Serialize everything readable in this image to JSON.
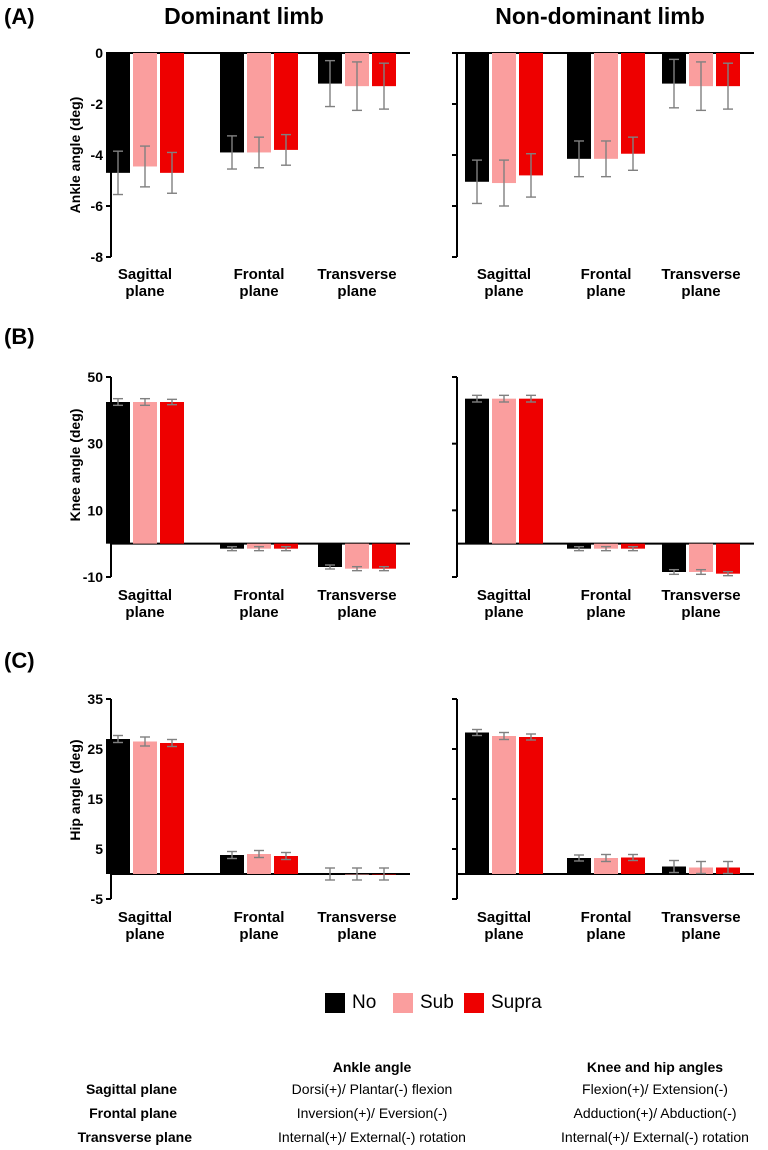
{
  "headers": {
    "dominant": "Dominant limb",
    "nondominant": "Non-dominant limb"
  },
  "legend": [
    {
      "label": "No",
      "color": "#000000"
    },
    {
      "label": "Sub",
      "color": "#fa9e9e"
    },
    {
      "label": "Supra",
      "color": "#ee0000"
    }
  ],
  "colors": {
    "errorbar": "#808080",
    "axis": "#000000"
  },
  "chart_data": [
    {
      "type": "bar",
      "panel": "(A)",
      "limb": "Dominant limb",
      "ylabel": "Ankle angle (deg)",
      "ylim": [
        -8,
        0
      ],
      "yticks": [
        0,
        -2,
        -4,
        -6,
        -8
      ],
      "categories": [
        "Sagittal plane",
        "Frontal plane",
        "Transverse plane"
      ],
      "series": [
        {
          "name": "No",
          "values": [
            -4.7,
            -3.9,
            -1.2
          ],
          "errors": [
            0.85,
            0.65,
            0.9
          ]
        },
        {
          "name": "Sub",
          "values": [
            -4.45,
            -3.9,
            -1.3
          ],
          "errors": [
            0.8,
            0.6,
            0.95
          ]
        },
        {
          "name": "Supra",
          "values": [
            -4.7,
            -3.8,
            -1.3
          ],
          "errors": [
            0.8,
            0.6,
            0.9
          ]
        }
      ]
    },
    {
      "type": "bar",
      "panel": "(A)",
      "limb": "Non-dominant limb",
      "ylabel": "Ankle angle (deg)",
      "ylim": [
        -8,
        0
      ],
      "yticks": [
        0,
        -2,
        -4,
        -6,
        -8
      ],
      "categories": [
        "Sagittal plane",
        "Frontal plane",
        "Transverse plane"
      ],
      "series": [
        {
          "name": "No",
          "values": [
            -5.05,
            -4.15,
            -1.2
          ],
          "errors": [
            0.85,
            0.7,
            0.95
          ]
        },
        {
          "name": "Sub",
          "values": [
            -5.1,
            -4.15,
            -1.3
          ],
          "errors": [
            0.9,
            0.7,
            0.95
          ]
        },
        {
          "name": "Supra",
          "values": [
            -4.8,
            -3.95,
            -1.3
          ],
          "errors": [
            0.85,
            0.65,
            0.9
          ]
        }
      ]
    },
    {
      "type": "bar",
      "panel": "(B)",
      "limb": "Dominant limb",
      "ylabel": "Knee angle (deg)",
      "ylim": [
        -10,
        50
      ],
      "yticks": [
        50,
        30,
        10,
        -10
      ],
      "categories": [
        "Sagittal plane",
        "Frontal plane",
        "Transverse plane"
      ],
      "series": [
        {
          "name": "No",
          "values": [
            42.5,
            -1.5,
            -7
          ],
          "errors": [
            1.0,
            0.6,
            0.6
          ]
        },
        {
          "name": "Sub",
          "values": [
            42.5,
            -1.5,
            -7.5
          ],
          "errors": [
            1.0,
            0.6,
            0.6
          ]
        },
        {
          "name": "Supra",
          "values": [
            42.5,
            -1.5,
            -7.5
          ],
          "errors": [
            0.8,
            0.6,
            0.6
          ]
        }
      ]
    },
    {
      "type": "bar",
      "panel": "(B)",
      "limb": "Non-dominant limb",
      "ylabel": "Knee angle (deg)",
      "ylim": [
        -10,
        50
      ],
      "yticks": [
        50,
        30,
        10,
        -10
      ],
      "categories": [
        "Sagittal plane",
        "Frontal plane",
        "Transverse plane"
      ],
      "series": [
        {
          "name": "No",
          "values": [
            43.5,
            -1.5,
            -8.5
          ],
          "errors": [
            1.0,
            0.6,
            0.7
          ]
        },
        {
          "name": "Sub",
          "values": [
            43.5,
            -1.5,
            -8.5
          ],
          "errors": [
            1.0,
            0.6,
            0.7
          ]
        },
        {
          "name": "Supra",
          "values": [
            43.5,
            -1.5,
            -9
          ],
          "errors": [
            1.0,
            0.6,
            0.6
          ]
        }
      ]
    },
    {
      "type": "bar",
      "panel": "(C)",
      "limb": "Dominant limb",
      "ylabel": "Hip angle (deg)",
      "ylim": [
        -5,
        35
      ],
      "yticks": [
        35,
        25,
        15,
        5,
        -5
      ],
      "categories": [
        "Sagittal plane",
        "Frontal plane",
        "Transverse plane"
      ],
      "series": [
        {
          "name": "No",
          "values": [
            27,
            3.8,
            0
          ],
          "errors": [
            0.7,
            0.7,
            1.2
          ]
        },
        {
          "name": "Sub",
          "values": [
            26.5,
            4.0,
            0
          ],
          "errors": [
            0.9,
            0.7,
            1.2
          ]
        },
        {
          "name": "Supra",
          "values": [
            26.2,
            3.6,
            0
          ],
          "errors": [
            0.7,
            0.7,
            1.2
          ]
        }
      ]
    },
    {
      "type": "bar",
      "panel": "(C)",
      "limb": "Non-dominant limb",
      "ylabel": "Hip angle (deg)",
      "ylim": [
        -5,
        35
      ],
      "yticks": [
        35,
        25,
        15,
        5,
        -5
      ],
      "categories": [
        "Sagittal plane",
        "Frontal plane",
        "Transverse plane"
      ],
      "series": [
        {
          "name": "No",
          "values": [
            28.3,
            3.2,
            1.5
          ],
          "errors": [
            0.6,
            0.6,
            1.2
          ]
        },
        {
          "name": "Sub",
          "values": [
            27.6,
            3.2,
            1.3
          ],
          "errors": [
            0.7,
            0.7,
            1.2
          ]
        },
        {
          "name": "Supra",
          "values": [
            27.4,
            3.3,
            1.3
          ],
          "errors": [
            0.6,
            0.6,
            1.2
          ]
        }
      ]
    }
  ],
  "footnote": {
    "col_headers": [
      "Ankle angle",
      "Knee and hip angles"
    ],
    "rows": [
      {
        "plane": "Sagittal plane",
        "ankle": "Dorsi(+)/ Plantar(-) flexion",
        "kneehip": "Flexion(+)/ Extension(-)"
      },
      {
        "plane": "Frontal plane",
        "ankle": "Inversion(+)/ Eversion(-)",
        "kneehip": "Adduction(+)/ Abduction(-)"
      },
      {
        "plane": "Transverse plane",
        "ankle": "Internal(+)/ External(-) rotation",
        "kneehip": "Internal(+)/ External(-) rotation"
      }
    ]
  }
}
